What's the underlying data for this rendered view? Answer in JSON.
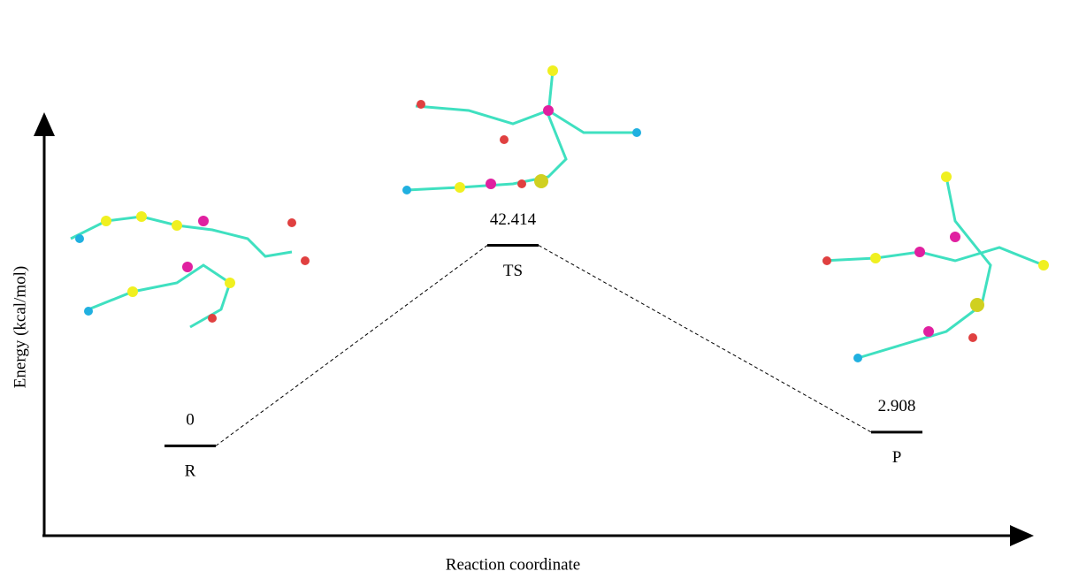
{
  "chart_data": {
    "type": "energy-profile",
    "x_label": "Reaction coordinate",
    "y_label": "Energy (kcal/mol)",
    "categories": [
      "R",
      "TS",
      "P"
    ],
    "values": [
      0,
      42.414,
      2.908
    ],
    "color": "#000000",
    "ylim": [
      -19,
      70
    ]
  }
}
